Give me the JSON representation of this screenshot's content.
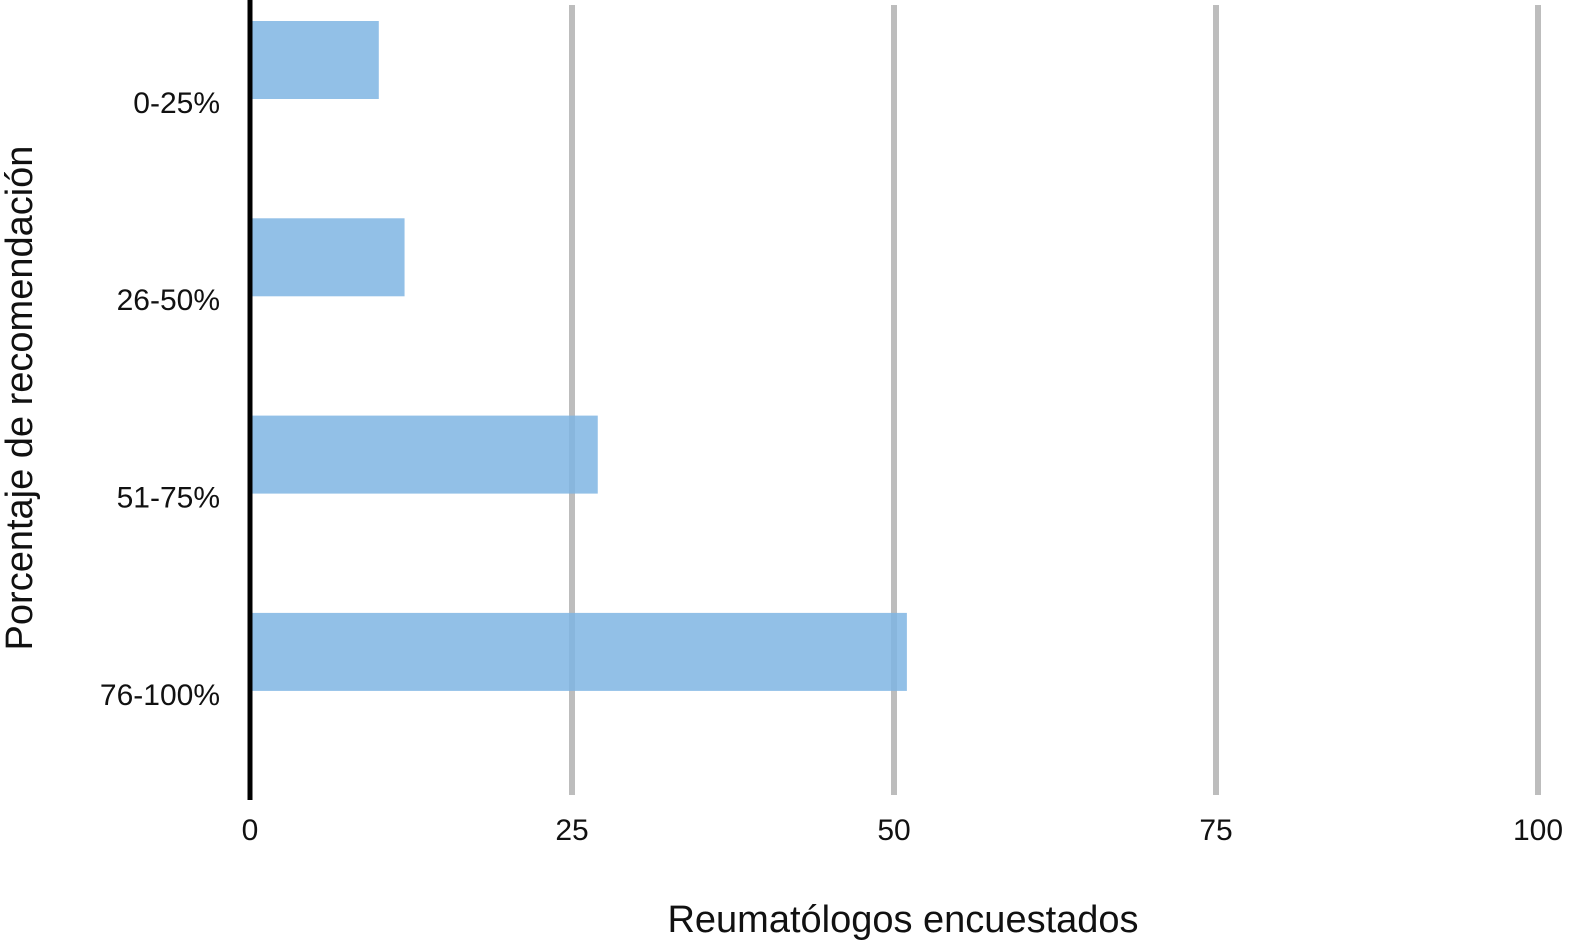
{
  "chart_data": {
    "type": "bar",
    "orientation": "horizontal",
    "xlabel": "Reumatólogos encuestados",
    "ylabel": "Porcentaje de recomendación",
    "categories": [
      "0-25%",
      "26-50%",
      "51-75%",
      "76-100%"
    ],
    "values": [
      10,
      12,
      27,
      51
    ],
    "color": "#7fb5e3",
    "xlim": [
      0,
      100
    ],
    "xticks": [
      0,
      25,
      50,
      75,
      100
    ],
    "grid": true
  }
}
